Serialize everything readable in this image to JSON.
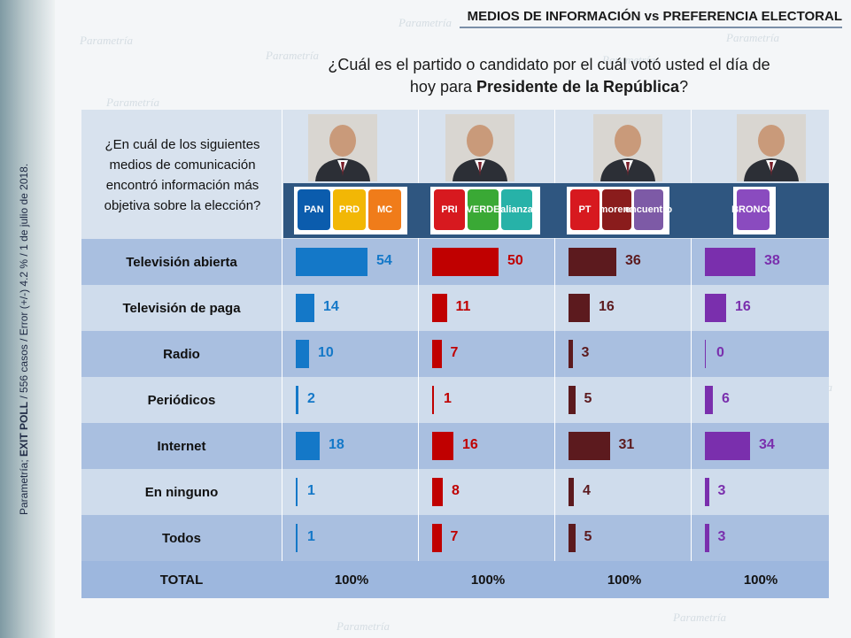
{
  "header": {
    "title": "MEDIOS DE INFORMACIÓN vs PREFERENCIA ELECTORAL"
  },
  "question": {
    "line1": "¿Cuál es el partido o candidato por el cuál votó usted el día de",
    "line2_pre": "hoy para ",
    "line2_bold": "Presidente de la República",
    "line2_post": "?"
  },
  "sub_question": {
    "lines": [
      "¿En cuál de los siguientes",
      "medios de comunicación",
      "encontró información más",
      "objetiva sobre la elección?"
    ]
  },
  "side_note": {
    "pre": "Parametría; ",
    "bold": "EXIT POLL",
    "post": " / 556 casos / Error (+/-) 4.2 % / 1 de julio de 2018."
  },
  "watermark_text": "Parametría",
  "candidates": [
    {
      "logos": [
        "PAN",
        "PRD",
        "MC"
      ],
      "logo_colors": [
        "#0b5cad",
        "#f2b705",
        "#f07c1a"
      ]
    },
    {
      "logos": [
        "PRI",
        "VERDE",
        "alianza"
      ],
      "logo_colors": [
        "#d7191f",
        "#3aa935",
        "#27b2a8"
      ]
    },
    {
      "logos": [
        "PT",
        "morena",
        "encuentro"
      ],
      "logo_colors": [
        "#d7191f",
        "#8a1c1c",
        "#7d5aa6"
      ]
    },
    {
      "logos": [
        "BRONCO"
      ],
      "logo_colors": [
        "#8a4bbf"
      ]
    }
  ],
  "colors": {
    "panel": "#d8e2ee",
    "total_row": "#9db7de",
    "logo_strip": "#2f5680"
  },
  "chart_data": {
    "type": "bar",
    "categories": [
      "Televisión abierta",
      "Televisión de paga",
      "Radio",
      "Periódicos",
      "Internet",
      "En ninguno",
      "Todos"
    ],
    "series": [
      {
        "color": "#1478c8",
        "values": [
          54,
          14,
          10,
          2,
          18,
          1,
          1
        ]
      },
      {
        "color": "#c00000",
        "values": [
          50,
          11,
          7,
          1,
          16,
          8,
          7
        ]
      },
      {
        "color": "#5c1a1e",
        "values": [
          36,
          16,
          3,
          5,
          31,
          4,
          5
        ]
      },
      {
        "color": "#7a2fad",
        "values": [
          38,
          16,
          0,
          6,
          34,
          3,
          3
        ]
      }
    ],
    "total_label": "TOTAL",
    "totals": [
      "100%",
      "100%",
      "100%",
      "100%"
    ],
    "xlim": [
      0,
      100
    ]
  }
}
